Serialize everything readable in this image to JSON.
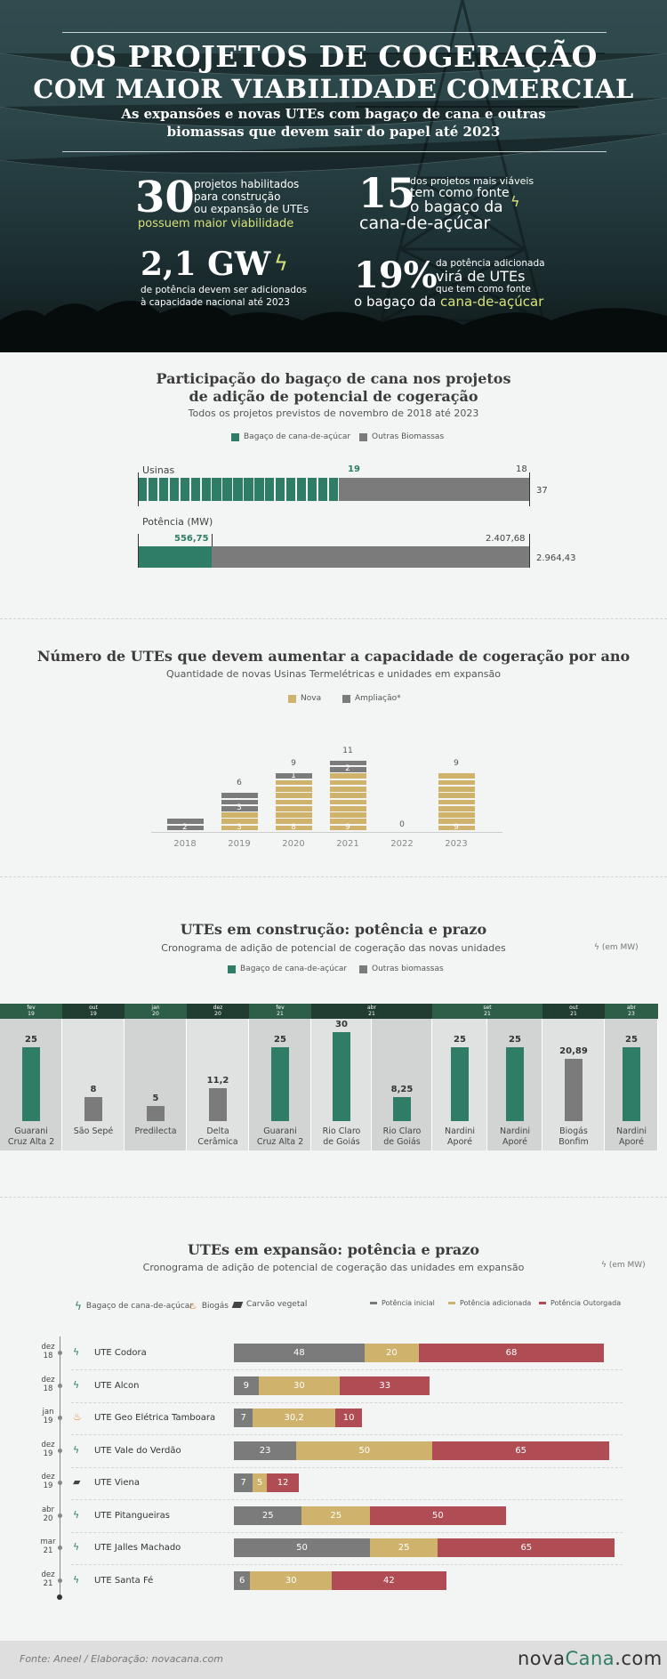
{
  "hero": {
    "title_line1": "OS PROJETOS DE COGERAÇÃO",
    "title_line2": "COM MAIOR VIABILIDADE COMERCIAL",
    "subtitle_line1": "As expansões e novas UTEs com bagaço de cana e outras",
    "subtitle_line2": "biomassas que devem sair do papel até 2023",
    "stat1": {
      "number": "30",
      "l1": "projetos habilitados",
      "l2": "para construção",
      "l3": "ou expansão de UTEs",
      "l4": "possuem maior viabilidade"
    },
    "stat2": {
      "number": "15",
      "l1": "dos projetos mais viáveis",
      "l2": "tem como fonte",
      "l3": "o bagaço da",
      "l4": "cana-de-açúcar"
    },
    "stat3": {
      "number": "2,1 GW",
      "l1": "de potência devem ser adicionados",
      "l2": "à capacidade nacional até 2023"
    },
    "stat4": {
      "number": "19%",
      "l1": "da potência adicionada",
      "l2": "virá de UTEs",
      "l3": "que tem como fonte",
      "l4a": "o bagaço da ",
      "l4b": "cana-de-açúcar"
    }
  },
  "section1": {
    "title_line1": "Participação do bagaço de cana nos projetos",
    "title_line2": "de adição de potencial de cogeração",
    "subtitle": "Todos os projetos previstos de novembro de 2018 até 2023",
    "legend_cane": "Bagaço de cana-de-açúcar",
    "legend_other": "Outras Biomassas",
    "usinas_label": "Usinas",
    "usinas_cane": "19",
    "usinas_other": "18",
    "usinas_total": "37",
    "potencia_label": "Potência (MW)",
    "potencia_cane": "556,75",
    "potencia_other": "2.407,68",
    "potencia_total": "2.964,43"
  },
  "section2": {
    "title": "Número de UTEs que devem aumentar a capacidade de cogeração por ano",
    "subtitle": "Quantidade de novas Usinas Termelétricas e unidades em expansão",
    "legend_new": "Nova",
    "legend_exp": "Ampliação*"
  },
  "section3": {
    "title": "UTEs em construção: potência e prazo",
    "subtitle": "Cronograma de adição de potencial de cogeração das novas unidades",
    "unit": "(em MW)",
    "legend_cane": "Bagaço de cana-de-açúcar",
    "legend_other": "Outras biomassas"
  },
  "section4": {
    "title": "UTEs em expansão: potência e prazo",
    "subtitle": "Cronograma de adição de potencial de cogeração das unidades em expansão",
    "unit": "(em MW)",
    "legend_cane": "Bagaço de cana-de-açúcar",
    "legend_biogas": "Biogás",
    "legend_charcoal": "Carvão vegetal",
    "legend_initial": "Potência inicial",
    "legend_added": "Potência adicionada",
    "legend_granted": "Potência Outorgada"
  },
  "footer": {
    "source": "Fonte: Aneel / Elaboração: novacana.com",
    "logo_a": "nova",
    "logo_b": "Cana",
    "logo_c": ".com"
  },
  "colors": {
    "cane": "#2f7d66",
    "other": "#7b7b7b",
    "new": "#cfb26b",
    "granted": "#b04d54"
  },
  "chart_data": [
    {
      "type": "bar",
      "title": "Participação do bagaço de cana nos projetos de adição de potencial de cogeração",
      "categories": [
        "Usinas",
        "Potência (MW)"
      ],
      "series": [
        {
          "name": "Bagaço de cana-de-açúcar",
          "values": [
            19,
            556.75
          ]
        },
        {
          "name": "Outras Biomassas",
          "values": [
            18,
            2407.68
          ]
        }
      ],
      "totals": [
        37,
        2964.43
      ]
    },
    {
      "type": "bar",
      "title": "Número de UTEs que devem aumentar a capacidade de cogeração por ano",
      "categories": [
        "2018",
        "2019",
        "2020",
        "2021",
        "2022",
        "2023"
      ],
      "series": [
        {
          "name": "Nova",
          "values": [
            0,
            3,
            8,
            9,
            0,
            9
          ]
        },
        {
          "name": "Ampliação*",
          "values": [
            2,
            3,
            1,
            2,
            0,
            0
          ]
        }
      ],
      "totals": [
        2,
        6,
        9,
        11,
        0,
        9
      ],
      "segment_labels_new": [
        "",
        "3",
        "8",
        "9",
        "",
        "9"
      ],
      "segment_labels_exp": [
        "2",
        "3",
        "1",
        "2",
        "",
        ""
      ]
    },
    {
      "type": "bar",
      "title": "UTEs em construção: potência e prazo",
      "timeline": [
        {
          "m": "fev",
          "y": "19",
          "cols": 1
        },
        {
          "m": "out",
          "y": "19",
          "cols": 1
        },
        {
          "m": "jan",
          "y": "20",
          "cols": 1
        },
        {
          "m": "dez",
          "y": "20",
          "cols": 1
        },
        {
          "m": "fev",
          "y": "21",
          "cols": 1
        },
        {
          "m": "abr",
          "y": "21",
          "cols": 2
        },
        {
          "m": "set",
          "y": "21",
          "cols": 2
        },
        {
          "m": "out",
          "y": "21",
          "cols": 1
        },
        {
          "m": "abr",
          "y": "23",
          "cols": 1
        }
      ],
      "items": [
        {
          "name1": "Guarani",
          "name2": "Cruz Alta 2",
          "value": 25,
          "label": "25",
          "source": "cane"
        },
        {
          "name1": "São Sepé",
          "name2": "",
          "value": 8,
          "label": "8",
          "source": "other"
        },
        {
          "name1": "Predilecta",
          "name2": "",
          "value": 5,
          "label": "5",
          "source": "other"
        },
        {
          "name1": "Delta",
          "name2": "Cerâmica",
          "value": 11.2,
          "label": "11,2",
          "source": "other"
        },
        {
          "name1": "Guarani",
          "name2": "Cruz Alta 2",
          "value": 25,
          "label": "25",
          "source": "cane"
        },
        {
          "name1": "Rio Claro",
          "name2": "de Goiás",
          "value": 30,
          "label": "30",
          "source": "cane"
        },
        {
          "name1": "Rio Claro",
          "name2": "de Goiás",
          "value": 8.25,
          "label": "8,25",
          "source": "cane"
        },
        {
          "name1": "Nardini",
          "name2": "Aporé",
          "value": 25,
          "label": "25",
          "source": "cane"
        },
        {
          "name1": "Nardini",
          "name2": "Aporé",
          "value": 25,
          "label": "25",
          "source": "cane"
        },
        {
          "name1": "Biogás",
          "name2": "Bonfim",
          "value": 20.89,
          "label": "20,89",
          "source": "other"
        },
        {
          "name1": "Nardini",
          "name2": "Aporé",
          "value": 25,
          "label": "25",
          "source": "cane"
        }
      ]
    },
    {
      "type": "bar",
      "title": "UTEs em expansão: potência e prazo",
      "rows": [
        {
          "d1": "dez",
          "d2": "18",
          "name": "UTE Codora",
          "icon": "cane",
          "initial": 48,
          "added": 20,
          "granted": 68,
          "li": "48",
          "la": "20",
          "lg": "68"
        },
        {
          "d1": "dez",
          "d2": "18",
          "name": "UTE Alcon",
          "icon": "cane",
          "initial": 9,
          "added": 30,
          "granted": 33,
          "li": "9",
          "la": "30",
          "lg": "33"
        },
        {
          "d1": "jan",
          "d2": "19",
          "name": "UTE Geo Elétrica Tamboara",
          "icon": "biogas",
          "initial": 7,
          "added": 30.2,
          "granted": 10,
          "li": "7",
          "la": "30,2",
          "lg": "10"
        },
        {
          "d1": "dez",
          "d2": "19",
          "name": "UTE Vale do Verdão",
          "icon": "cane",
          "initial": 23,
          "added": 50,
          "granted": 65,
          "li": "23",
          "la": "50",
          "lg": "65"
        },
        {
          "d1": "dez",
          "d2": "19",
          "name": "UTE Viena",
          "icon": "charcoal",
          "initial": 7,
          "added": 5,
          "granted": 12,
          "li": "7",
          "la": "5",
          "lg": "12"
        },
        {
          "d1": "abr",
          "d2": "20",
          "name": "UTE Pitangueiras",
          "icon": "cane",
          "initial": 25,
          "added": 25,
          "granted": 50,
          "li": "25",
          "la": "25",
          "lg": "50"
        },
        {
          "d1": "mar",
          "d2": "21",
          "name": "UTE Jalles Machado",
          "icon": "cane",
          "initial": 50,
          "added": 25,
          "granted": 65,
          "li": "50",
          "la": "25",
          "lg": "65"
        },
        {
          "d1": "dez",
          "d2": "21",
          "name": "UTE Santa Fé",
          "icon": "cane",
          "initial": 6,
          "added": 30,
          "granted": 42,
          "li": "6",
          "la": "30",
          "lg": "42"
        }
      ]
    }
  ]
}
